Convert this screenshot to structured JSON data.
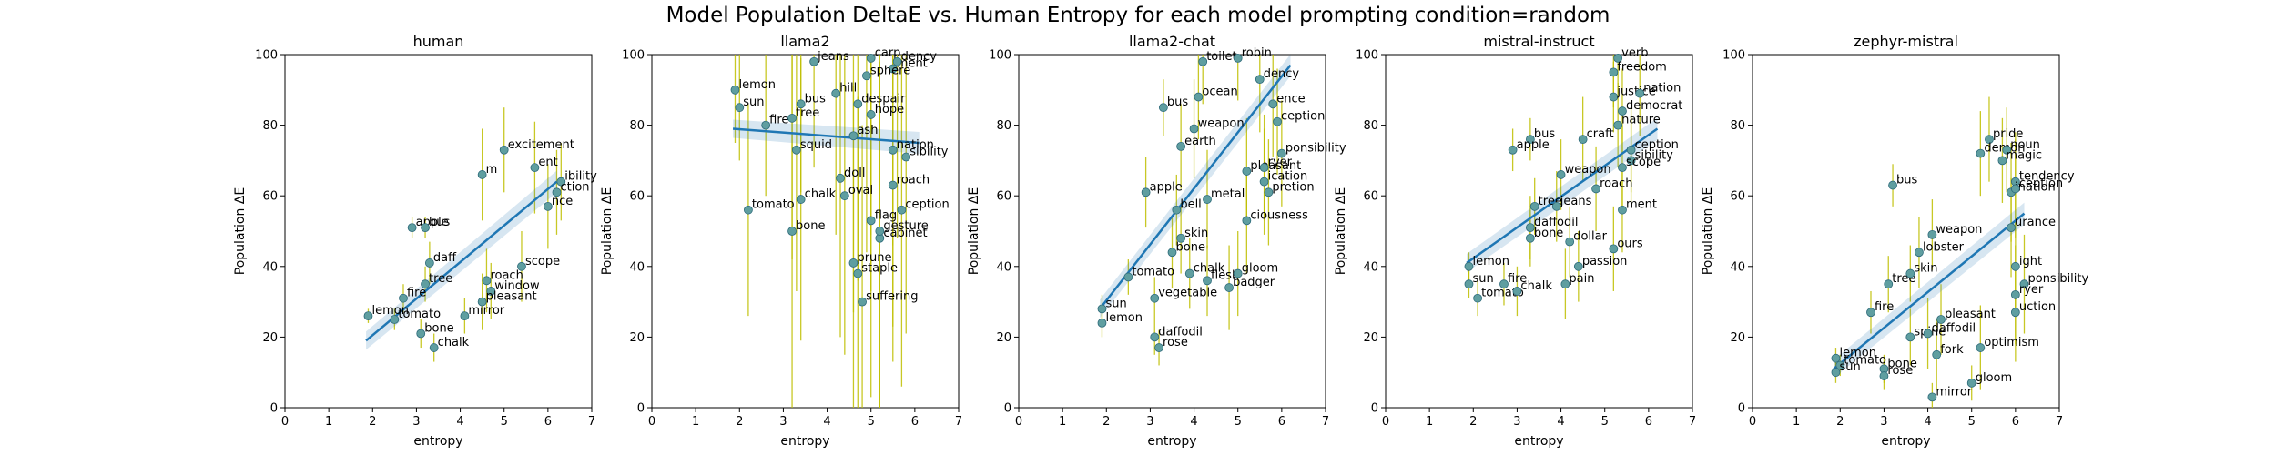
{
  "figure": {
    "title": "Model Population DeltaE vs. Human Entropy for each model prompting condition=random"
  },
  "colors": {
    "point": "#5f9ea0",
    "point_edge": "#2d6a7a",
    "regression_line": "#1f77b4",
    "ci_band": "#1f77b4",
    "errorbar": "#bfbf00"
  },
  "chart_data": [
    {
      "type": "scatter",
      "title": "human",
      "xlabel": "entropy",
      "ylabel": "Population ΔE",
      "xlim": [
        0,
        7
      ],
      "ylim": [
        0,
        100
      ],
      "xticks": [
        "0",
        "1",
        "2",
        "3",
        "4",
        "5",
        "6",
        "7"
      ],
      "yticks": [
        "0",
        "20",
        "40",
        "60",
        "80",
        "100"
      ],
      "grid": false,
      "regression": {
        "x": [
          1.85,
          6.2
        ],
        "y": [
          19,
          64
        ]
      },
      "points": [
        {
          "label": "lemon",
          "x": 1.9,
          "y": 26,
          "err": 2
        },
        {
          "label": "tomato",
          "x": 2.5,
          "y": 25,
          "err": 3
        },
        {
          "label": "apple",
          "x": 2.9,
          "y": 51,
          "err": 3
        },
        {
          "label": "bus",
          "x": 3.2,
          "y": 51,
          "err": 3
        },
        {
          "label": "fire",
          "x": 2.7,
          "y": 31,
          "err": 4
        },
        {
          "label": "bone",
          "x": 3.1,
          "y": 21,
          "err": 4
        },
        {
          "label": "chalk",
          "x": 3.4,
          "y": 17,
          "err": 4
        },
        {
          "label": "mirror",
          "x": 4.1,
          "y": 26,
          "err": 5
        },
        {
          "label": "tree",
          "x": 3.2,
          "y": 35,
          "err": 5
        },
        {
          "label": "daff",
          "x": 3.3,
          "y": 41,
          "err": 6
        },
        {
          "label": "window",
          "x": 4.7,
          "y": 33,
          "err": 8
        },
        {
          "label": "pleasant",
          "x": 4.5,
          "y": 30,
          "err": 8
        },
        {
          "label": "scope",
          "x": 5.4,
          "y": 40,
          "err": 10
        },
        {
          "label": "roach",
          "x": 4.6,
          "y": 36,
          "err": 9
        },
        {
          "label": "excitement",
          "x": 5.0,
          "y": 73,
          "err": 12
        },
        {
          "label": "ibility",
          "x": 6.3,
          "y": 64,
          "err": 11
        },
        {
          "label": "ction",
          "x": 6.2,
          "y": 61,
          "err": 12
        },
        {
          "label": "nce",
          "x": 6.0,
          "y": 57,
          "err": 12
        },
        {
          "label": "ent",
          "x": 5.7,
          "y": 68,
          "err": 13
        },
        {
          "label": "m",
          "x": 4.5,
          "y": 66,
          "err": 13
        }
      ]
    },
    {
      "type": "scatter",
      "title": "llama2",
      "xlabel": "entropy",
      "ylabel": "Population ΔE",
      "xlim": [
        0,
        7
      ],
      "ylim": [
        0,
        100
      ],
      "xticks": [
        "0",
        "1",
        "2",
        "3",
        "4",
        "5",
        "6",
        "7"
      ],
      "yticks": [
        "0",
        "20",
        "40",
        "60",
        "80",
        "100"
      ],
      "grid": false,
      "regression": {
        "x": [
          1.85,
          6.1
        ],
        "y": [
          79,
          75
        ]
      },
      "points": [
        {
          "label": "lemon",
          "x": 1.9,
          "y": 90,
          "err": 15
        },
        {
          "label": "sun",
          "x": 2.0,
          "y": 85,
          "err": 15
        },
        {
          "label": "fire",
          "x": 2.6,
          "y": 80,
          "err": 20
        },
        {
          "label": "tomato",
          "x": 2.2,
          "y": 56,
          "err": 30
        },
        {
          "label": "chalk",
          "x": 3.4,
          "y": 59,
          "err": 40
        },
        {
          "label": "bone",
          "x": 3.2,
          "y": 50,
          "err": 50
        },
        {
          "label": "prune",
          "x": 4.6,
          "y": 41,
          "err": 50
        },
        {
          "label": "staple",
          "x": 4.7,
          "y": 38,
          "err": 50
        },
        {
          "label": "suffering",
          "x": 4.8,
          "y": 30,
          "err": 50
        },
        {
          "label": "jeans",
          "x": 3.7,
          "y": 98,
          "err": 30
        },
        {
          "label": "bus",
          "x": 3.4,
          "y": 86,
          "err": 25
        },
        {
          "label": "hill",
          "x": 4.2,
          "y": 89,
          "err": 40
        },
        {
          "label": "tree",
          "x": 3.2,
          "y": 82,
          "err": 40
        },
        {
          "label": "squid",
          "x": 3.3,
          "y": 73,
          "err": 40
        },
        {
          "label": "carp",
          "x": 5.0,
          "y": 99,
          "err": 50
        },
        {
          "label": "cabinet",
          "x": 5.2,
          "y": 48,
          "err": 50
        },
        {
          "label": "gesture",
          "x": 5.2,
          "y": 50,
          "err": 50
        },
        {
          "label": "flag",
          "x": 5.0,
          "y": 53,
          "err": 50
        },
        {
          "label": "roach",
          "x": 5.5,
          "y": 63,
          "err": 50
        },
        {
          "label": "sibility",
          "x": 5.8,
          "y": 71,
          "err": 50
        },
        {
          "label": "ception",
          "x": 5.7,
          "y": 56,
          "err": 50
        },
        {
          "label": "ment",
          "x": 5.5,
          "y": 96,
          "err": 50
        },
        {
          "label": "dency",
          "x": 5.6,
          "y": 98,
          "err": 50
        },
        {
          "label": "nation",
          "x": 5.5,
          "y": 73,
          "err": 50
        },
        {
          "label": "doll",
          "x": 4.3,
          "y": 65,
          "err": 45
        },
        {
          "label": "oval",
          "x": 4.4,
          "y": 60,
          "err": 45
        },
        {
          "label": "sphere",
          "x": 4.9,
          "y": 94,
          "err": 50
        },
        {
          "label": "despair",
          "x": 4.7,
          "y": 86,
          "err": 50
        },
        {
          "label": "hope",
          "x": 5.0,
          "y": 83,
          "err": 50
        },
        {
          "label": "ash",
          "x": 4.6,
          "y": 77,
          "err": 50
        }
      ]
    },
    {
      "type": "scatter",
      "title": "llama2-chat",
      "xlabel": "entropy",
      "ylabel": "Population ΔE",
      "xlim": [
        0,
        7
      ],
      "ylim": [
        0,
        100
      ],
      "xticks": [
        "0",
        "1",
        "2",
        "3",
        "4",
        "5",
        "6",
        "7"
      ],
      "yticks": [
        "0",
        "20",
        "40",
        "60",
        "80",
        "100"
      ],
      "grid": false,
      "regression": {
        "x": [
          1.85,
          6.2
        ],
        "y": [
          28,
          97
        ]
      },
      "points": [
        {
          "label": "lemon",
          "x": 1.9,
          "y": 24,
          "err": 4
        },
        {
          "label": "sun",
          "x": 1.9,
          "y": 28,
          "err": 4
        },
        {
          "label": "tomato",
          "x": 2.5,
          "y": 37,
          "err": 5
        },
        {
          "label": "daffodil",
          "x": 3.1,
          "y": 20,
          "err": 5
        },
        {
          "label": "rose",
          "x": 3.2,
          "y": 17,
          "err": 5
        },
        {
          "label": "vegetable",
          "x": 3.1,
          "y": 31,
          "err": 6
        },
        {
          "label": "bus",
          "x": 3.3,
          "y": 85,
          "err": 8
        },
        {
          "label": "apple",
          "x": 2.9,
          "y": 61,
          "err": 10
        },
        {
          "label": "bell",
          "x": 3.6,
          "y": 56,
          "err": 10
        },
        {
          "label": "skin",
          "x": 3.7,
          "y": 48,
          "err": 10
        },
        {
          "label": "bone",
          "x": 3.5,
          "y": 44,
          "err": 10
        },
        {
          "label": "chalk",
          "x": 3.9,
          "y": 38,
          "err": 10
        },
        {
          "label": "flesh",
          "x": 4.3,
          "y": 36,
          "err": 10
        },
        {
          "label": "badger",
          "x": 4.8,
          "y": 34,
          "err": 12
        },
        {
          "label": "gloom",
          "x": 5.0,
          "y": 38,
          "err": 12
        },
        {
          "label": "ocean",
          "x": 4.1,
          "y": 88,
          "err": 12
        },
        {
          "label": "toilet",
          "x": 4.2,
          "y": 98,
          "err": 12
        },
        {
          "label": "robin",
          "x": 5.0,
          "y": 99,
          "err": 12
        },
        {
          "label": "pleasant",
          "x": 5.2,
          "y": 67,
          "err": 15
        },
        {
          "label": "ciousness",
          "x": 5.2,
          "y": 53,
          "err": 15
        },
        {
          "label": "pretion",
          "x": 5.7,
          "y": 61,
          "err": 15
        },
        {
          "label": "ponsibility",
          "x": 6.0,
          "y": 72,
          "err": 15
        },
        {
          "label": "dency",
          "x": 5.5,
          "y": 93,
          "err": 15
        },
        {
          "label": "ence",
          "x": 5.8,
          "y": 86,
          "err": 15
        },
        {
          "label": "ception",
          "x": 5.9,
          "y": 81,
          "err": 15
        },
        {
          "label": "ryer",
          "x": 5.6,
          "y": 68,
          "err": 15
        },
        {
          "label": "ication",
          "x": 5.6,
          "y": 64,
          "err": 15
        },
        {
          "label": "weapon",
          "x": 4.0,
          "y": 79,
          "err": 14
        },
        {
          "label": "earth",
          "x": 3.7,
          "y": 74,
          "err": 12
        },
        {
          "label": "metal",
          "x": 4.3,
          "y": 59,
          "err": 14
        }
      ]
    },
    {
      "type": "scatter",
      "title": "mistral-instruct",
      "xlabel": "entropy",
      "ylabel": "Population ΔE",
      "xlim": [
        0,
        7
      ],
      "ylim": [
        0,
        100
      ],
      "xticks": [
        "0",
        "1",
        "2",
        "3",
        "4",
        "5",
        "6",
        "7"
      ],
      "yticks": [
        "0",
        "20",
        "40",
        "60",
        "80",
        "100"
      ],
      "grid": false,
      "regression": {
        "x": [
          1.85,
          6.2
        ],
        "y": [
          41,
          79
        ]
      },
      "points": [
        {
          "label": "lemon",
          "x": 1.9,
          "y": 40,
          "err": 4
        },
        {
          "label": "sun",
          "x": 1.9,
          "y": 35,
          "err": 4
        },
        {
          "label": "tomato",
          "x": 2.1,
          "y": 31,
          "err": 5
        },
        {
          "label": "fire",
          "x": 2.7,
          "y": 35,
          "err": 6
        },
        {
          "label": "chalk",
          "x": 3.0,
          "y": 33,
          "err": 7
        },
        {
          "label": "bus",
          "x": 3.3,
          "y": 76,
          "err": 6
        },
        {
          "label": "apple",
          "x": 2.9,
          "y": 73,
          "err": 6
        },
        {
          "label": "tree",
          "x": 3.4,
          "y": 57,
          "err": 8
        },
        {
          "label": "bone",
          "x": 3.3,
          "y": 48,
          "err": 8
        },
        {
          "label": "daffodil",
          "x": 3.3,
          "y": 51,
          "err": 9
        },
        {
          "label": "pain",
          "x": 4.1,
          "y": 35,
          "err": 10
        },
        {
          "label": "passion",
          "x": 4.4,
          "y": 40,
          "err": 10
        },
        {
          "label": "dollar",
          "x": 4.2,
          "y": 47,
          "err": 10
        },
        {
          "label": "verb",
          "x": 5.3,
          "y": 99,
          "err": 10
        },
        {
          "label": "freedom",
          "x": 5.2,
          "y": 95,
          "err": 10
        },
        {
          "label": "justice",
          "x": 5.2,
          "y": 88,
          "err": 10
        },
        {
          "label": "nation",
          "x": 5.8,
          "y": 89,
          "err": 12
        },
        {
          "label": "democrat",
          "x": 5.4,
          "y": 84,
          "err": 12
        },
        {
          "label": "nature",
          "x": 5.3,
          "y": 80,
          "err": 12
        },
        {
          "label": "craft",
          "x": 4.5,
          "y": 76,
          "err": 12
        },
        {
          "label": "ception",
          "x": 5.6,
          "y": 73,
          "err": 12
        },
        {
          "label": "sibility",
          "x": 5.6,
          "y": 70,
          "err": 12
        },
        {
          "label": "scope",
          "x": 5.4,
          "y": 68,
          "err": 12
        },
        {
          "label": "ment",
          "x": 5.4,
          "y": 56,
          "err": 12
        },
        {
          "label": "ours",
          "x": 5.2,
          "y": 45,
          "err": 12
        },
        {
          "label": "jeans",
          "x": 3.9,
          "y": 57,
          "err": 10
        },
        {
          "label": "weapon",
          "x": 4.0,
          "y": 66,
          "err": 10
        },
        {
          "label": "roach",
          "x": 4.8,
          "y": 62,
          "err": 12
        }
      ]
    },
    {
      "type": "scatter",
      "title": "zephyr-mistral",
      "xlabel": "entropy",
      "ylabel": "Population ΔE",
      "xlim": [
        0,
        7
      ],
      "ylim": [
        0,
        100
      ],
      "xticks": [
        "0",
        "1",
        "2",
        "3",
        "4",
        "5",
        "6",
        "7"
      ],
      "yticks": [
        "0",
        "20",
        "40",
        "60",
        "80",
        "100"
      ],
      "grid": false,
      "regression": {
        "x": [
          1.85,
          6.2
        ],
        "y": [
          11,
          55
        ]
      },
      "points": [
        {
          "label": "lemon",
          "x": 1.9,
          "y": 14,
          "err": 3
        },
        {
          "label": "tomato",
          "x": 2.0,
          "y": 12,
          "err": 3
        },
        {
          "label": "sun",
          "x": 1.9,
          "y": 10,
          "err": 3
        },
        {
          "label": "bone",
          "x": 3.0,
          "y": 11,
          "err": 4
        },
        {
          "label": "rose",
          "x": 3.0,
          "y": 9,
          "err": 4
        },
        {
          "label": "mirror",
          "x": 4.1,
          "y": 3,
          "err": 4
        },
        {
          "label": "gloom",
          "x": 5.0,
          "y": 7,
          "err": 5
        },
        {
          "label": "bus",
          "x": 3.2,
          "y": 63,
          "err": 6
        },
        {
          "label": "fire",
          "x": 2.7,
          "y": 27,
          "err": 6
        },
        {
          "label": "tree",
          "x": 3.1,
          "y": 35,
          "err": 8
        },
        {
          "label": "skin",
          "x": 3.6,
          "y": 38,
          "err": 8
        },
        {
          "label": "lobster",
          "x": 3.8,
          "y": 44,
          "err": 10
        },
        {
          "label": "weapon",
          "x": 4.1,
          "y": 49,
          "err": 10
        },
        {
          "label": "spine",
          "x": 3.6,
          "y": 20,
          "err": 8
        },
        {
          "label": "daffodil",
          "x": 4.0,
          "y": 21,
          "err": 10
        },
        {
          "label": "pleasant",
          "x": 4.3,
          "y": 25,
          "err": 10
        },
        {
          "label": "fork",
          "x": 4.2,
          "y": 15,
          "err": 10
        },
        {
          "label": "optimism",
          "x": 5.2,
          "y": 17,
          "err": 12
        },
        {
          "label": "pride",
          "x": 5.4,
          "y": 76,
          "err": 12
        },
        {
          "label": "demon",
          "x": 5.2,
          "y": 72,
          "err": 12
        },
        {
          "label": "noun",
          "x": 5.8,
          "y": 73,
          "err": 12
        },
        {
          "label": "magic",
          "x": 5.7,
          "y": 70,
          "err": 12
        },
        {
          "label": "tendency",
          "x": 6.0,
          "y": 64,
          "err": 14
        },
        {
          "label": "ination",
          "x": 5.9,
          "y": 61,
          "err": 14
        },
        {
          "label": "ception",
          "x": 6.0,
          "y": 62,
          "err": 14
        },
        {
          "label": "urance",
          "x": 5.9,
          "y": 51,
          "err": 14
        },
        {
          "label": "ponsibility",
          "x": 6.2,
          "y": 35,
          "err": 14
        },
        {
          "label": "ryer",
          "x": 6.0,
          "y": 32,
          "err": 14
        },
        {
          "label": "uction",
          "x": 6.0,
          "y": 27,
          "err": 14
        },
        {
          "label": "ight",
          "x": 6.0,
          "y": 40,
          "err": 14
        }
      ]
    }
  ]
}
